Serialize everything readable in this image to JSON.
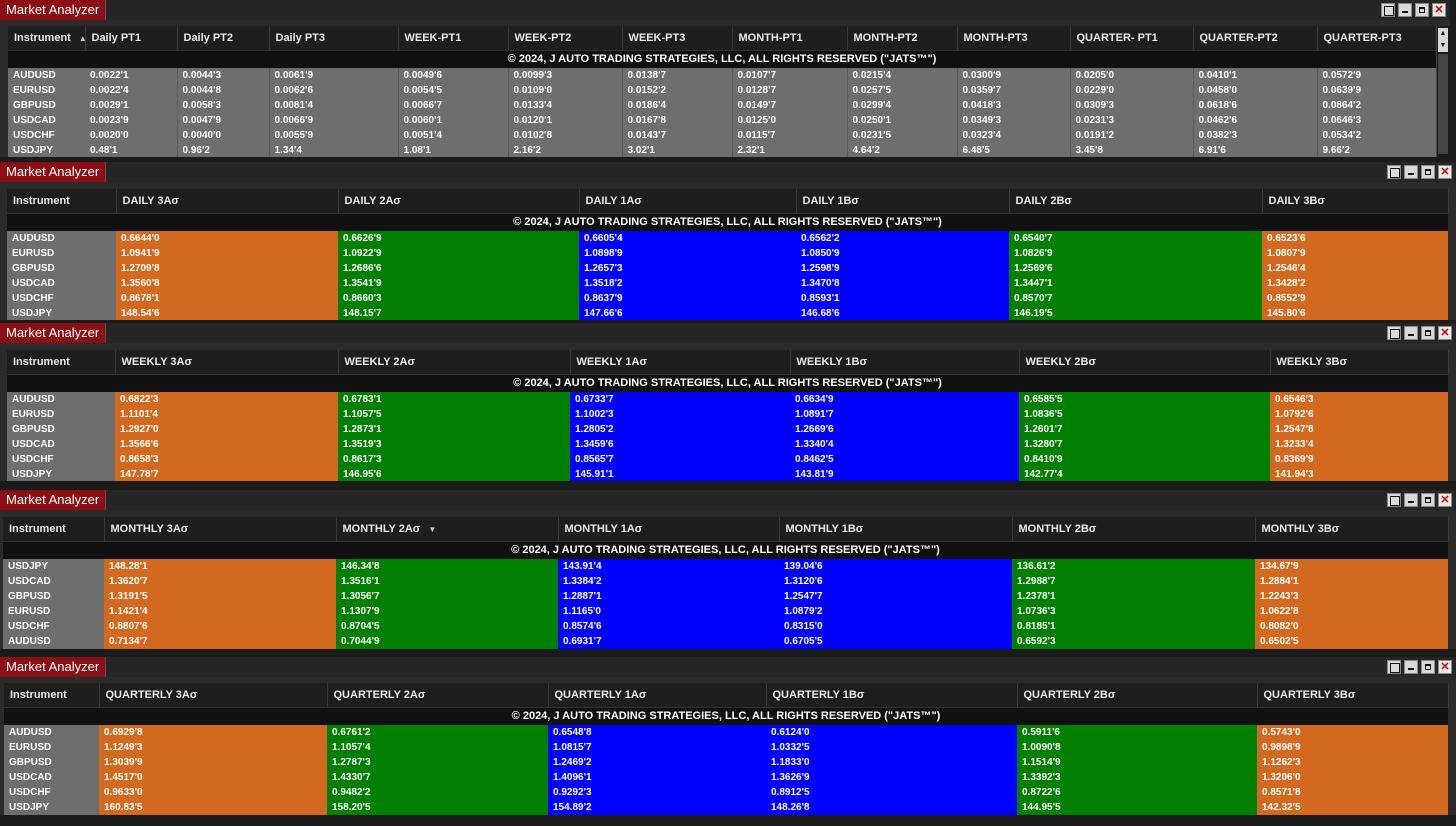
{
  "window_title": "Market Analyzer",
  "copyright": "© 2024, J AUTO TRADING STRATEGIES, LLC, ALL RIGHTS RESERVED (\"JATS™\")",
  "colors": {
    "title_bg": "#8b0f14",
    "orange": "#d2691e",
    "green": "#007f00",
    "blue": "#0000ff",
    "gray_cell": "#6e6e6e"
  },
  "panel1": {
    "headers": [
      "Instrument",
      "Daily PT1",
      "Daily PT2",
      "Daily PT3",
      "WEEK-PT1",
      "WEEK-PT2",
      "WEEK-PT3",
      "MONTH-PT1",
      "MONTH-PT2",
      "MONTH-PT3",
      "QUARTER- PT1",
      "QUARTER-PT2",
      "QUARTER-PT3"
    ],
    "rows": [
      [
        "AUDUSD",
        "0.0022'1",
        "0.0044'3",
        "0.0061'9",
        "0.0049'6",
        "0.0099'3",
        "0.0138'7",
        "0.0107'7",
        "0.0215'4",
        "0.0300'9",
        "0.0205'0",
        "0.0410'1",
        "0.0572'9"
      ],
      [
        "EURUSD",
        "0.0022'4",
        "0.0044'8",
        "0.0062'6",
        "0.0054'5",
        "0.0109'0",
        "0.0152'2",
        "0.0128'7",
        "0.0257'5",
        "0.0359'7",
        "0.0229'0",
        "0.0458'0",
        "0.0639'9"
      ],
      [
        "GBPUSD",
        "0.0029'1",
        "0.0058'3",
        "0.0081'4",
        "0.0066'7",
        "0.0133'4",
        "0.0186'4",
        "0.0149'7",
        "0.0299'4",
        "0.0418'3",
        "0.0309'3",
        "0.0618'6",
        "0.0864'2"
      ],
      [
        "USDCAD",
        "0.0023'9",
        "0.0047'9",
        "0.0066'9",
        "0.0060'1",
        "0.0120'1",
        "0.0167'8",
        "0.0125'0",
        "0.0250'1",
        "0.0349'3",
        "0.0231'3",
        "0.0462'6",
        "0.0646'3"
      ],
      [
        "USDCHF",
        "0.0020'0",
        "0.0040'0",
        "0.0055'9",
        "0.0051'4",
        "0.0102'8",
        "0.0143'7",
        "0.0115'7",
        "0.0231'5",
        "0.0323'4",
        "0.0191'2",
        "0.0382'3",
        "0.0534'2"
      ],
      [
        "USDJPY",
        "0.48'1",
        "0.96'2",
        "1.34'4",
        "1.08'1",
        "2.16'2",
        "3.02'1",
        "2.32'1",
        "4.64'2",
        "6.48'5",
        "3.45'8",
        "6.91'6",
        "9.66'2"
      ]
    ]
  },
  "panel2": {
    "headers": [
      "Instrument",
      "DAILY 3Aσ",
      "DAILY 2Aσ",
      "DAILY 1Aσ",
      "DAILY 1Bσ",
      "DAILY 2Bσ",
      "DAILY 3Bσ"
    ],
    "rows": [
      [
        "AUDUSD",
        "0.6644'0",
        "0.6626'9",
        "0.6605'4",
        "0.6562'2",
        "0.6540'7",
        "0.6523'6"
      ],
      [
        "EURUSD",
        "1.0941'9",
        "1.0922'9",
        "1.0898'9",
        "1.0850'9",
        "1.0826'9",
        "1.0807'9"
      ],
      [
        "GBPUSD",
        "1.2709'8",
        "1.2686'6",
        "1.2657'3",
        "1.2598'9",
        "1.2569'6",
        "1.2546'4"
      ],
      [
        "USDCAD",
        "1.3560'8",
        "1.3541'9",
        "1.3518'2",
        "1.3470'8",
        "1.3447'1",
        "1.3428'2"
      ],
      [
        "USDCHF",
        "0.8678'1",
        "0.8660'3",
        "0.8637'9",
        "0.8593'1",
        "0.8570'7",
        "0.8552'9"
      ],
      [
        "USDJPY",
        "148.54'6",
        "148.15'7",
        "147.66'6",
        "146.68'6",
        "146.19'5",
        "145.80'6"
      ]
    ]
  },
  "panel3": {
    "headers": [
      "Instrument",
      "WEEKLY 3Aσ",
      "WEEKLY 2Aσ",
      "WEEKLY 1Aσ",
      "WEEKLY 1Bσ",
      "WEEKLY 2Bσ",
      "WEEKLY 3Bσ"
    ],
    "rows": [
      [
        "AUDUSD",
        "0.6822'3",
        "0.6783'1",
        "0.6733'7",
        "0.6634'9",
        "0.6585'5",
        "0.6546'3"
      ],
      [
        "EURUSD",
        "1.1101'4",
        "1.1057'5",
        "1.1002'3",
        "1.0891'7",
        "1.0836'5",
        "1.0792'6"
      ],
      [
        "GBPUSD",
        "1.2927'0",
        "1.2873'1",
        "1.2805'2",
        "1.2669'6",
        "1.2601'7",
        "1.2547'8"
      ],
      [
        "USDCAD",
        "1.3566'6",
        "1.3519'3",
        "1.3459'6",
        "1.3340'4",
        "1.3280'7",
        "1.3233'4"
      ],
      [
        "USDCHF",
        "0.8658'3",
        "0.8617'3",
        "0.8565'7",
        "0.8462'5",
        "0.8410'9",
        "0.8369'9"
      ],
      [
        "USDJPY",
        "147.78'7",
        "146.95'6",
        "145.91'1",
        "143.81'9",
        "142.77'4",
        "141.94'3"
      ]
    ]
  },
  "panel4": {
    "headers": [
      "Instrument",
      "MONTHLY 3Aσ",
      "MONTHLY 2Aσ",
      "MONTHLY 1Aσ",
      "MONTHLY 1Bσ",
      "MONTHLY 2Bσ",
      "MONTHLY 3Bσ"
    ],
    "rows": [
      [
        "USDJPY",
        "148.28'1",
        "146.34'8",
        "143.91'4",
        "139.04'6",
        "136.61'2",
        "134.67'9"
      ],
      [
        "USDCAD",
        "1.3620'7",
        "1.3516'1",
        "1.3384'2",
        "1.3120'6",
        "1.2988'7",
        "1.2884'1"
      ],
      [
        "GBPUSD",
        "1.3191'5",
        "1.3056'7",
        "1.2887'1",
        "1.2547'7",
        "1.2378'1",
        "1.2243'3"
      ],
      [
        "EURUSD",
        "1.1421'4",
        "1.1307'9",
        "1.1165'0",
        "1.0879'2",
        "1.0736'3",
        "1.0622'8"
      ],
      [
        "USDCHF",
        "0.8807'6",
        "0.8704'5",
        "0.8574'6",
        "0.8315'0",
        "0.8185'1",
        "0.8082'0"
      ],
      [
        "AUDUSD",
        "0.7134'7",
        "0.7044'9",
        "0.6931'7",
        "0.6705'5",
        "0.6592'3",
        "0.6502'5"
      ]
    ]
  },
  "panel5": {
    "headers": [
      "Instrument",
      "QUARTERLY 3Aσ",
      "QUARTERLY 2Aσ",
      "QUARTERLY 1Aσ",
      "QUARTERLY 1Bσ",
      "QUARTERLY 2Bσ",
      "QUARTERLY 3Bσ"
    ],
    "rows": [
      [
        "AUDUSD",
        "0.6929'8",
        "0.6761'2",
        "0.6548'8",
        "0.6124'0",
        "0.5911'6",
        "0.5743'0"
      ],
      [
        "EURUSD",
        "1.1249'3",
        "1.1057'4",
        "1.0815'7",
        "1.0332'5",
        "1.0090'8",
        "0.9898'9"
      ],
      [
        "GBPUSD",
        "1.3039'9",
        "1.2787'3",
        "1.2469'2",
        "1.1833'0",
        "1.1514'9",
        "1.1262'3"
      ],
      [
        "USDCAD",
        "1.4517'0",
        "1.4330'7",
        "1.4096'1",
        "1.3626'9",
        "1.3392'3",
        "1.3206'0"
      ],
      [
        "USDCHF",
        "0.9633'0",
        "0.9482'2",
        "0.9292'3",
        "0.8912'5",
        "0.8722'6",
        "0.8571'8"
      ],
      [
        "USDJPY",
        "160.83'5",
        "158.20'5",
        "154.89'2",
        "148.26'8",
        "144.95'5",
        "142.32'5"
      ]
    ]
  }
}
